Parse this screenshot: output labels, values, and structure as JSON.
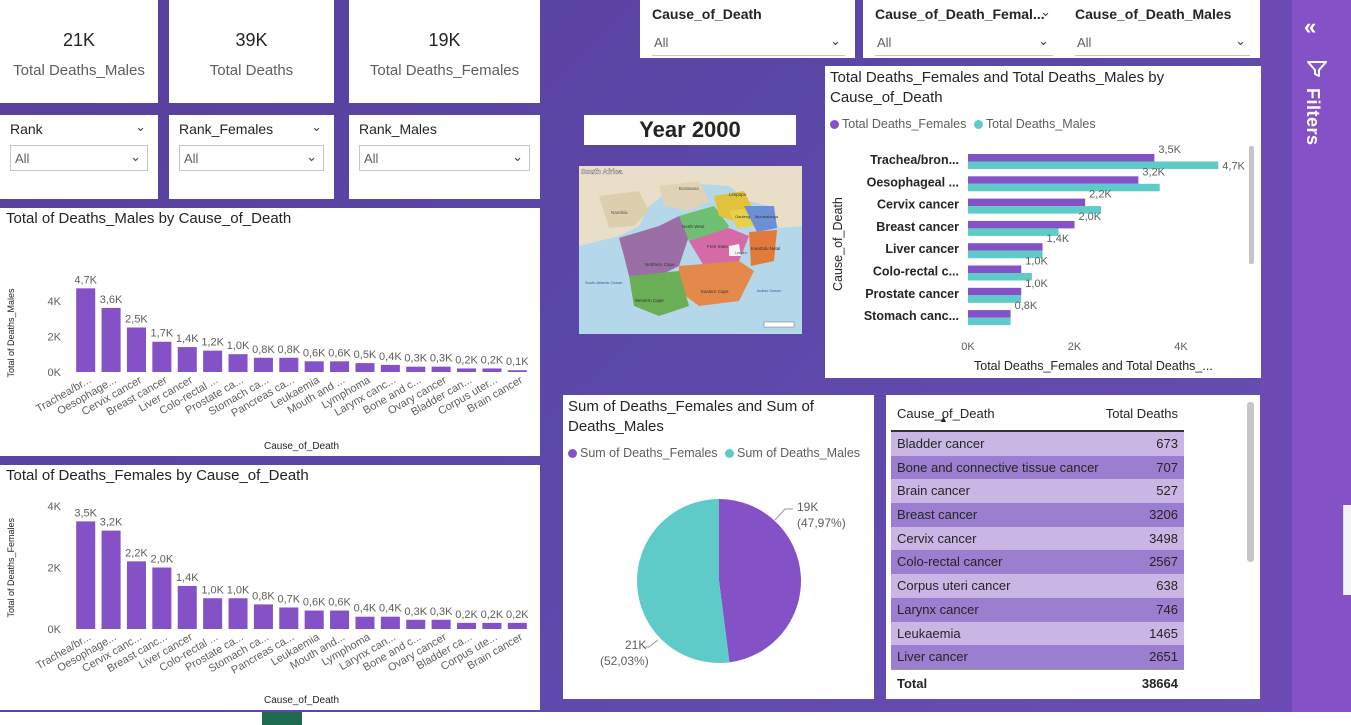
{
  "kpis": [
    {
      "value": "21K",
      "label": "Total Deaths_Males"
    },
    {
      "value": "39K",
      "label": "Total Deaths"
    },
    {
      "value": "19K",
      "label": "Total Deaths_Females"
    }
  ],
  "slicers": [
    {
      "title": "Rank",
      "value": "All"
    },
    {
      "title": "Rank_Females",
      "value": "All"
    },
    {
      "title": "Rank_Males",
      "value": "All"
    }
  ],
  "top_slicers": [
    {
      "title": "Cause_of_Death",
      "value": "All"
    },
    {
      "title": "Cause_of_Death_Femal...",
      "value": "All"
    },
    {
      "title": "Cause_of_Death_Males",
      "value": "All"
    }
  ],
  "year_label": "Year 2000",
  "map": {
    "title": "South Africa",
    "provinces": [
      "Limpopo",
      "North West",
      "Gauteng",
      "Mpumalanga",
      "Free State",
      "KwaZulu Natal",
      "Northern Cape",
      "Eastern Cape",
      "Western Cape"
    ],
    "countries": [
      "Botswana",
      "Namibia",
      "Lesotho"
    ],
    "oceans": [
      "South Atlantic Ocean",
      "Indian Ocean"
    ]
  },
  "filters_pane": {
    "label": "Filters",
    "collapse_glyph": "«"
  },
  "table": {
    "headers": [
      "Cause_of_Death",
      "Total Deaths"
    ],
    "rows": [
      {
        "name": "Bladder cancer",
        "value": "673"
      },
      {
        "name": "Bone and connective tissue cancer",
        "value": "707"
      },
      {
        "name": "Brain cancer",
        "value": "527"
      },
      {
        "name": "Breast cancer",
        "value": "3206"
      },
      {
        "name": "Cervix cancer",
        "value": "3498"
      },
      {
        "name": "Colo-rectal cancer",
        "value": "2567"
      },
      {
        "name": "Corpus uteri cancer",
        "value": "638"
      },
      {
        "name": "Larynx cancer",
        "value": "746"
      },
      {
        "name": "Leukaemia",
        "value": "1465"
      },
      {
        "name": "Liver cancer",
        "value": "2651"
      }
    ],
    "total_label": "Total",
    "total_value": "38664"
  },
  "colors": {
    "purple": "#8452c6",
    "teal": "#5ecbc8",
    "row_a": "#c9b6e4",
    "row_b": "#9c7ed0"
  },
  "chart_data": [
    {
      "type": "bar",
      "title": "Total of Deaths_Males by Cause_of_Death",
      "xlabel": "Cause_of_Death",
      "ylabel": "Total of Deaths_Males",
      "ylim": [
        0,
        5000
      ],
      "yticks": [
        "0K",
        "2K",
        "4K"
      ],
      "categories": [
        "Trachea/br...",
        "Oesophage...",
        "Cervix cancer",
        "Breast cancer",
        "Liver cancer",
        "Colo-rectal ...",
        "Prostate ca...",
        "Stomach ca...",
        "Pancreas ca...",
        "Leukaemia",
        "Mouth and ...",
        "Lymphoma",
        "Larynx canc...",
        "Bone and c...",
        "Ovary cancer",
        "Bladder can...",
        "Corpus uter...",
        "Brain cancer"
      ],
      "values": [
        4700,
        3600,
        2500,
        1700,
        1400,
        1200,
        1000,
        800,
        800,
        600,
        600,
        500,
        400,
        300,
        300,
        200,
        200,
        100
      ],
      "labels": [
        "4,7K",
        "3,6K",
        "2,5K",
        "1,7K",
        "1,4K",
        "1,2K",
        "1,0K",
        "0,8K",
        "0,8K",
        "0,6K",
        "0,6K",
        "0,5K",
        "0,4K",
        "0,3K",
        "0,3K",
        "0,2K",
        "0,2K",
        "0,1K"
      ]
    },
    {
      "type": "bar",
      "title": "Total of Deaths_Females by Cause_of_Death",
      "xlabel": "Cause_of_Death",
      "ylabel": "Total of Deaths_Females",
      "ylim": [
        0,
        4000
      ],
      "yticks": [
        "0K",
        "2K",
        "4K"
      ],
      "categories": [
        "Trachea/br...",
        "Oesophage...",
        "Cervix canc...",
        "Breast canc...",
        "Liver cancer",
        "Colo-rectal ...",
        "Prostate ca...",
        "Stomach ca...",
        "Pancreas ca...",
        "Leukaemia",
        "Mouth and...",
        "Lymphoma",
        "Larynx can...",
        "Bone and c...",
        "Ovary cancer",
        "Bladder ca...",
        "Corpus ute...",
        "Brain cancer"
      ],
      "values": [
        3500,
        3200,
        2200,
        2000,
        1400,
        1000,
        1000,
        800,
        700,
        600,
        600,
        400,
        400,
        300,
        300,
        200,
        200,
        200
      ],
      "labels": [
        "3,5K",
        "3,2K",
        "2,2K",
        "2,0K",
        "1,4K",
        "1,0K",
        "1,0K",
        "0,8K",
        "0,7K",
        "0,6K",
        "0,6K",
        "0,4K",
        "0,4K",
        "0,3K",
        "0,3K",
        "0,2K",
        "0,2K",
        "0,2K"
      ]
    },
    {
      "type": "bar",
      "orientation": "horizontal",
      "title": "Total Deaths_Females and Total Deaths_Males by Cause_of_Death",
      "xlabel": "Total Deaths_Females and Total Deaths_...",
      "ylabel": "Cause_of_Death",
      "xlim": [
        0,
        5000
      ],
      "xticks": [
        "0K",
        "2K",
        "4K"
      ],
      "categories": [
        "Trachea/bron...",
        "Oesophageal ...",
        "Cervix cancer",
        "Breast cancer",
        "Liver cancer",
        "Colo-rectal c...",
        "Prostate cancer",
        "Stomach canc..."
      ],
      "series": [
        {
          "name": "Total Deaths_Females",
          "values": [
            3500,
            3200,
            2200,
            2000,
            1400,
            1000,
            1000,
            800
          ],
          "labels": [
            "3,5K",
            "3,2K",
            "2,2K",
            "2,0K",
            "1,4K",
            "1,0K",
            "1,0K",
            "0,8K"
          ]
        },
        {
          "name": "Total  Deaths_Males",
          "values": [
            4700,
            3600,
            2500,
            1700,
            1400,
            1200,
            1000,
            800
          ],
          "labels": [
            "4,7K",
            "",
            "",
            "",
            "",
            "",
            "",
            ""
          ]
        }
      ],
      "legend": "top-left"
    },
    {
      "type": "pie",
      "title": "Sum of Deaths_Females and Sum of Deaths_Males",
      "series": [
        {
          "name": "Sum of Deaths_Females",
          "value": 19000,
          "percent": 47.97,
          "label": "19K",
          "pct_label": "(47,97%)"
        },
        {
          "name": "Sum of Deaths_Males",
          "value": 21000,
          "percent": 52.03,
          "label": "21K",
          "pct_label": "(52,03%)"
        }
      ],
      "legend": "top-left"
    }
  ]
}
